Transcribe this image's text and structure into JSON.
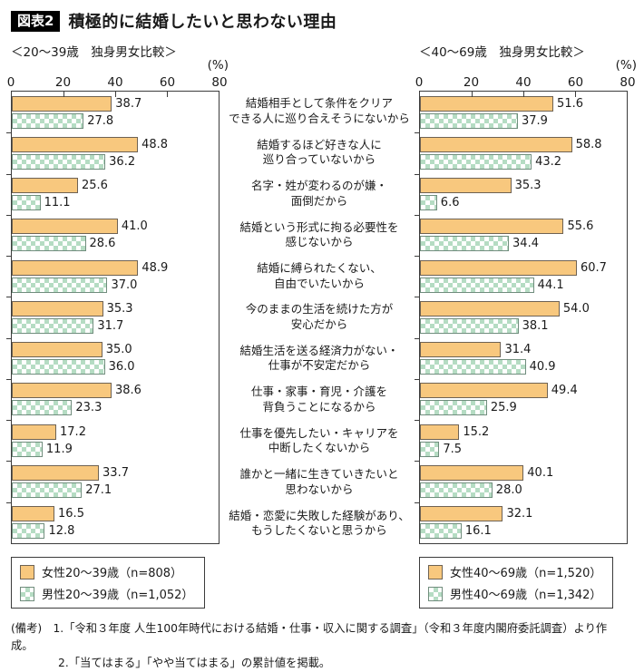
{
  "page": {
    "badge": "図表2",
    "title": "積極的に結婚したいと思わない理由"
  },
  "chart_data": {
    "type": "bar",
    "orientation": "horizontal",
    "axis": {
      "ticks": [
        0,
        20,
        40,
        60,
        80
      ],
      "xlim": [
        0,
        80
      ],
      "unit_label": "(%)"
    },
    "legend_position": "bottom",
    "grid": false,
    "categories": [
      "結婚相手として条件をクリア\nできる人に巡り合えそうにないから",
      "結婚するほど好きな人に\n巡り合っていないから",
      "名字・姓が変わるのが嫌・\n面倒だから",
      "結婚という形式に拘る必要性を\n感じないから",
      "結婚に縛られたくない、\n自由でいたいから",
      "今のままの生活を続けた方が\n安心だから",
      "結婚生活を送る経済力がない・\n仕事が不安定だから",
      "仕事・家事・育児・介護を\n背負うことになるから",
      "仕事を優先したい・キャリアを\n中断したくないから",
      "誰かと一緒に生きていきたいと\n思わないから",
      "結婚・恋愛に失敗した経験があり、\nもうしたくないと思うから"
    ],
    "charts": [
      {
        "subtitle": "＜20～39歳　独身男女比較＞",
        "series": [
          {
            "name": "女性20～39歳（n=808）",
            "values": [
              38.7,
              48.8,
              25.6,
              41.0,
              48.9,
              35.3,
              35.0,
              38.6,
              17.2,
              33.7,
              16.5
            ]
          },
          {
            "name": "男性20～39歳（n=1,052）",
            "values": [
              27.8,
              36.2,
              11.1,
              28.6,
              37.0,
              31.7,
              36.0,
              23.3,
              11.9,
              27.1,
              12.8
            ]
          }
        ]
      },
      {
        "subtitle": "＜40～69歳　独身男女比較＞",
        "series": [
          {
            "name": "女性40～69歳（n=1,520）",
            "values": [
              51.6,
              58.8,
              35.3,
              55.6,
              60.7,
              54.0,
              31.4,
              49.4,
              15.2,
              40.1,
              32.1
            ]
          },
          {
            "name": "男性40～69歳（n=1,342）",
            "values": [
              37.9,
              43.2,
              6.6,
              34.4,
              44.1,
              38.1,
              40.9,
              25.9,
              7.5,
              28.0,
              16.1
            ]
          }
        ]
      }
    ],
    "colors": {
      "female_fill": "#F8C87E",
      "female_border": "#6E6253",
      "male_check": "#B5DCC3",
      "male_border": "#708D7D",
      "axis_line": "#3c3c3c"
    }
  },
  "footer": {
    "lines": [
      "(備考)　1.「令和３年度 人生100年時代における結婚・仕事・収入に関する調査」（令和３年度内閣府委託調査）より作成。",
      "2.「当てはまる」「やや当てはまる」の累計値を掲載。"
    ]
  }
}
